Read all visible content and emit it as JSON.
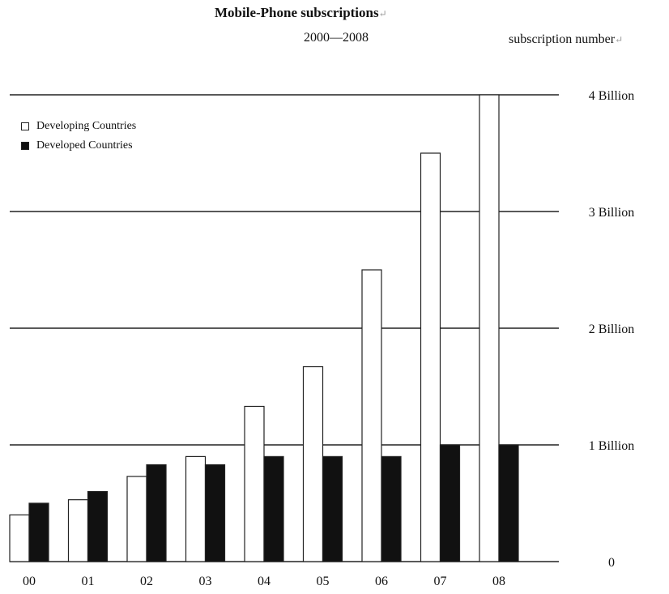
{
  "chart_data": {
    "type": "bar",
    "title": "Mobile-Phone subscriptions",
    "subtitle": "2000—2008",
    "ylabel": "subscription number",
    "categories": [
      "00",
      "01",
      "02",
      "03",
      "04",
      "05",
      "06",
      "07",
      "08"
    ],
    "series": [
      {
        "name": "Developing Countries",
        "color": "#ffffff",
        "values": [
          0.4,
          0.53,
          0.73,
          0.9,
          1.33,
          1.67,
          2.5,
          3.5,
          4.0
        ]
      },
      {
        "name": "Developed Countries",
        "color": "#111111",
        "values": [
          0.5,
          0.6,
          0.83,
          0.83,
          0.9,
          0.9,
          0.9,
          1.0,
          1.0
        ]
      }
    ],
    "ylim": [
      0,
      4
    ],
    "yticks": [
      {
        "value": 0,
        "label": "0"
      },
      {
        "value": 1,
        "label": "1 Billion"
      },
      {
        "value": 2,
        "label": "2 Billion"
      },
      {
        "value": 3,
        "label": "3 Billion"
      },
      {
        "value": 4,
        "label": "4 Billion"
      }
    ],
    "grid": true,
    "legend_position": "top-left"
  }
}
